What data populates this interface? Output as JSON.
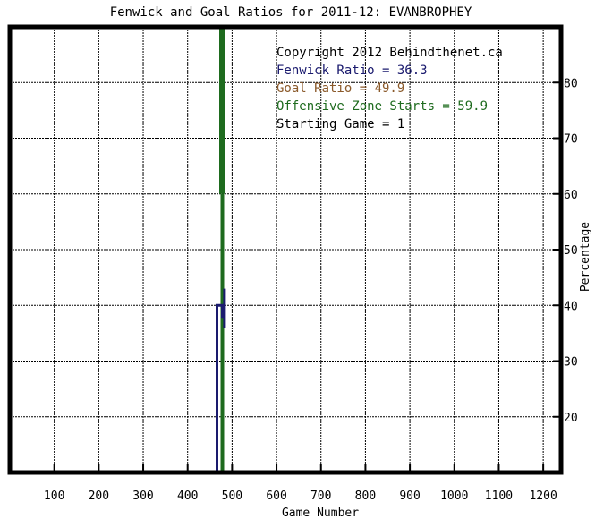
{
  "chart_data": {
    "type": "line",
    "title": "Fenwick and Goal Ratios for 2011-12: EVANBROPHEY",
    "xlabel": "Game Number",
    "ylabel": "Percentage",
    "xlim": [
      0,
      1240
    ],
    "ylim": [
      10,
      90
    ],
    "x_ticks": [
      100,
      200,
      300,
      400,
      500,
      600,
      700,
      800,
      900,
      1000,
      1100,
      1200
    ],
    "y_ticks": [
      20,
      30,
      40,
      50,
      60,
      70,
      80
    ],
    "grid": true,
    "annotations": [
      {
        "text": "Copyright 2012 Behindthenet.ca",
        "color": "#000000"
      },
      {
        "text": "Fenwick Ratio = 36.3",
        "color": "#1a1a6e"
      },
      {
        "text": "Goal Ratio = 49.9",
        "color": "#8b5a2b"
      },
      {
        "text": "Offensive Zone Starts = 59.9",
        "color": "#1e6b1e"
      },
      {
        "text": "Starting Game = 1",
        "color": "#000000"
      }
    ],
    "series": [
      {
        "color": "#1e6b1e",
        "width": 7,
        "points": [
          [
            478,
            60
          ],
          [
            478,
            90
          ]
        ]
      },
      {
        "color": "#1e6b1e",
        "width": 4,
        "points": [
          [
            478,
            10
          ],
          [
            478,
            60
          ]
        ]
      },
      {
        "color": "#1a1a6e",
        "width": 3,
        "points": [
          [
            466,
            10
          ],
          [
            466,
            40
          ],
          [
            478,
            40
          ],
          [
            478,
            38
          ],
          [
            483,
            38
          ],
          [
            483,
            43
          ],
          [
            483,
            36
          ]
        ]
      }
    ]
  }
}
